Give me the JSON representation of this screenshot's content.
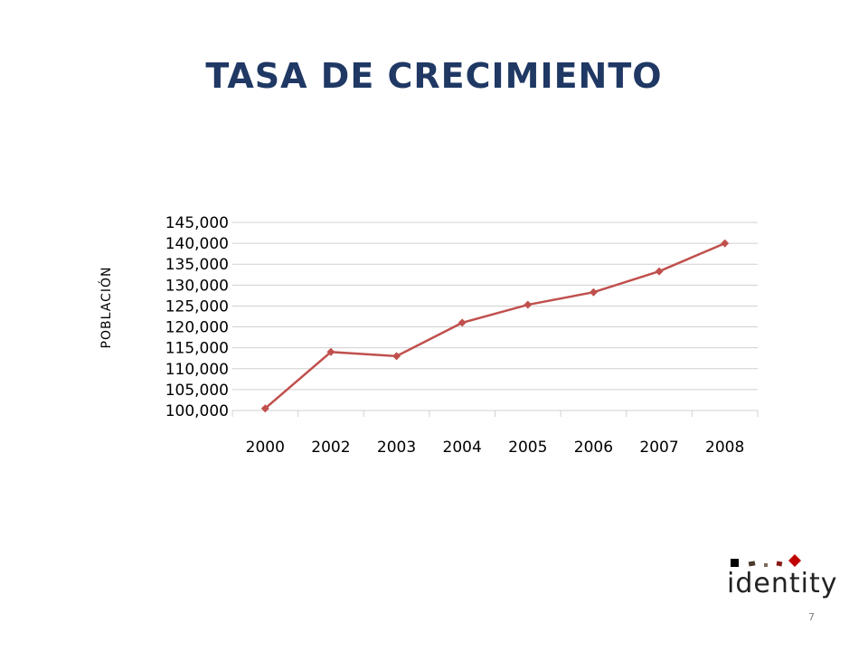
{
  "slide": {
    "title": "TASA DE CRECIMIENTO",
    "page_number": "7",
    "logo_text": "identity"
  },
  "colors": {
    "title": "#1f3864",
    "series_line": "#c0504d",
    "gridline": "#d0d0d0",
    "logo_square_1": "#000000",
    "logo_square_2": "#4a3b2a",
    "logo_square_3": "#7a6a5a",
    "logo_square_4": "#8b1a1a",
    "logo_diamond": "#c00000"
  },
  "chart_data": {
    "type": "line",
    "title": "TASA DE CRECIMIENTO",
    "ylabel": "POBLACIÓN",
    "xlabel": "",
    "categories": [
      "2000",
      "2002",
      "2003",
      "2004",
      "2005",
      "2006",
      "2007",
      "2008"
    ],
    "series": [
      {
        "values": [
          100500,
          114000,
          113000,
          121000,
          125300,
          128300,
          133300,
          140000
        ],
        "marker": "diamond",
        "color": "#c0504d"
      }
    ],
    "ylim": [
      100000,
      145000
    ],
    "y_ticks": [
      "100,000",
      "105,000",
      "110,000",
      "115,000",
      "120,000",
      "125,000",
      "130,000",
      "135,000",
      "140,000",
      "145,000"
    ],
    "y_tick_values": [
      100000,
      105000,
      110000,
      115000,
      120000,
      125000,
      130000,
      135000,
      140000,
      145000
    ],
    "grid": true,
    "legend": "none"
  }
}
